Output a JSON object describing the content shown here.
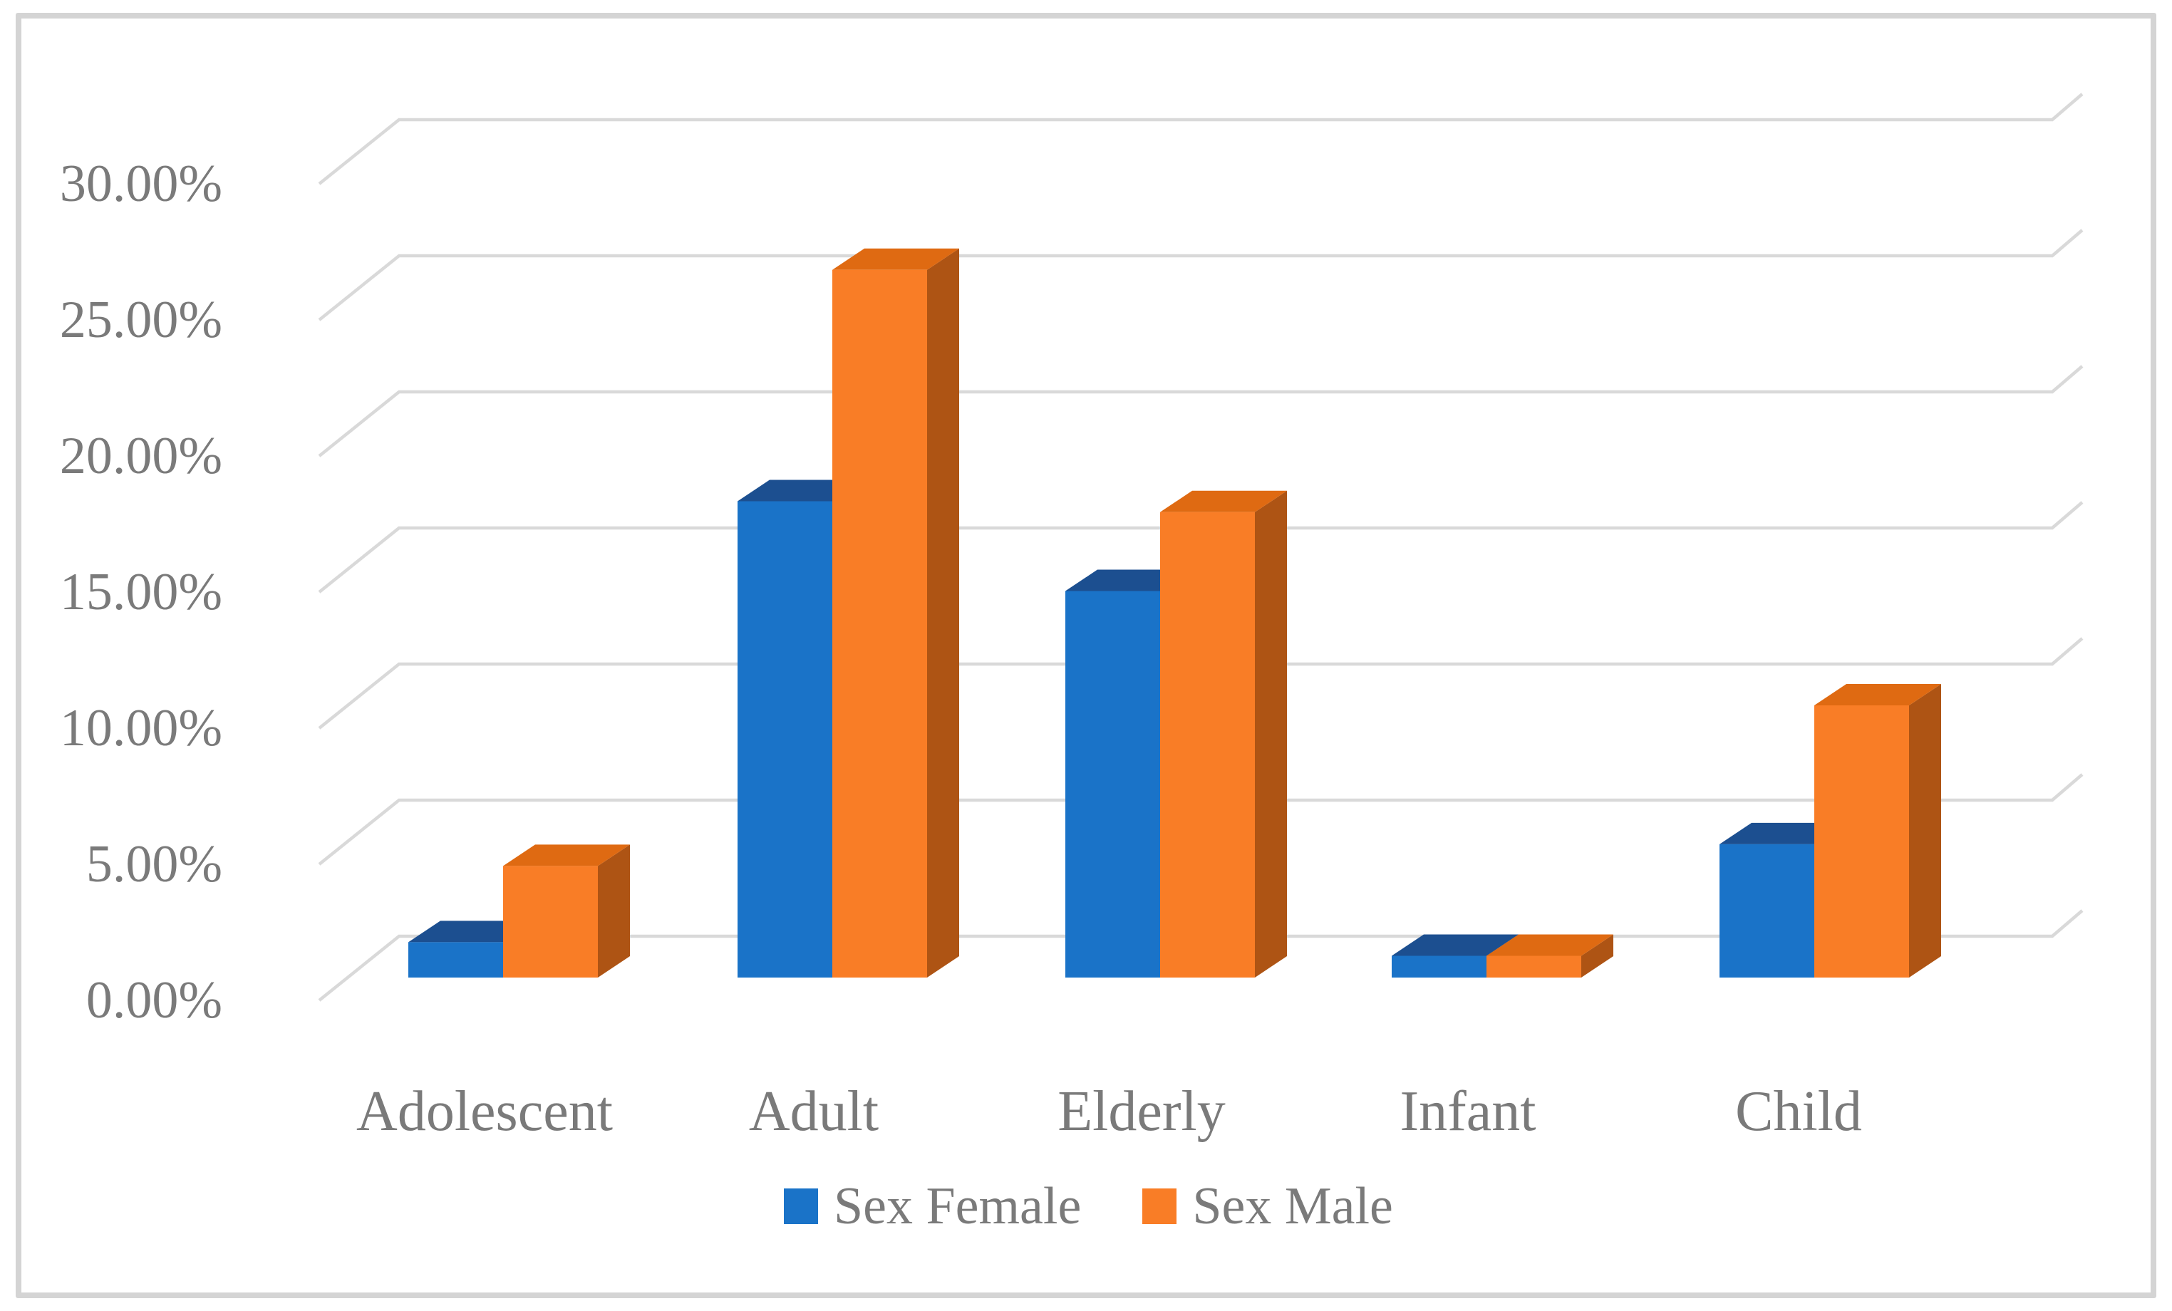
{
  "figure": {
    "background_color": "#ffffff",
    "border_color": "#d4d4d4",
    "text_color": "#7a7a7a",
    "gridline_color": "#d9d9d9"
  },
  "chart_data": {
    "type": "bar",
    "style": "3d-clustered-column",
    "title": "",
    "xlabel": "",
    "ylabel": "",
    "categories": [
      "Adolescent",
      "Adult",
      "Elderly",
      "Infant",
      "Child"
    ],
    "series": [
      {
        "name": "Sex Female",
        "color": "#1a73c8",
        "top_color": "#1c4f90",
        "side_color": "#15549b",
        "values_pct": [
          1.3,
          17.5,
          14.2,
          0.8,
          4.9
        ]
      },
      {
        "name": "Sex Male",
        "color": "#f97d26",
        "top_color": "#df6a12",
        "side_color": "#ae5414",
        "values_pct": [
          4.1,
          26.0,
          17.1,
          0.8,
          10.0
        ]
      }
    ],
    "y_axis": {
      "min": 0,
      "max": 30,
      "gridlines": true,
      "ticks": [
        {
          "value": 0,
          "label": "0.00%"
        },
        {
          "value": 5,
          "label": "5.00%"
        },
        {
          "value": 10,
          "label": "10.00%"
        },
        {
          "value": 15,
          "label": "15.00%"
        },
        {
          "value": 20,
          "label": "20.00%"
        },
        {
          "value": 25,
          "label": "25.00%"
        },
        {
          "value": 30,
          "label": "30.00%"
        }
      ]
    },
    "legend": {
      "position": "bottom",
      "items": [
        "Sex Female",
        "Sex Male"
      ]
    }
  }
}
